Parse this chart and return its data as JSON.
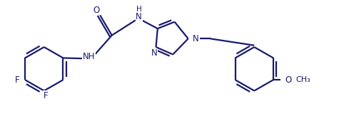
{
  "background_color": "#ffffff",
  "line_color": "#1a1a6e",
  "line_width": 1.6,
  "font_size": 8.5,
  "xlim": [
    0,
    10
  ],
  "ylim": [
    0,
    3.6
  ]
}
